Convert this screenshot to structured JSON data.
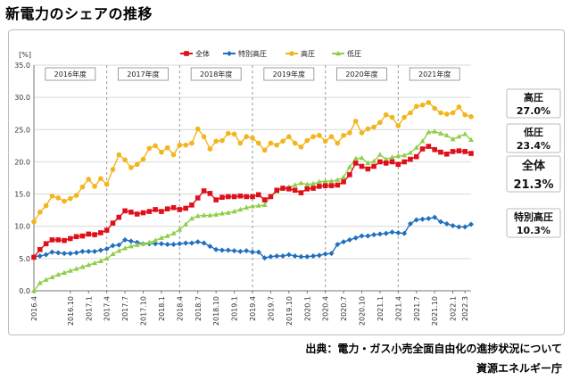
{
  "page": {
    "title": "新電力のシェアの推移"
  },
  "source": {
    "line1": "出典：電力・ガス小売全面自由化の進捗状況について",
    "line2": "資源エネルギー庁"
  },
  "colors": {
    "total": "#e0101a",
    "special_high": "#1f6fbf",
    "high": "#f2b51c",
    "low": "#8fce4a"
  },
  "chart_data": {
    "type": "line",
    "title": "",
    "ylabel": "[%]",
    "xlabel": "",
    "ylim": [
      0,
      35
    ],
    "yticks": [
      "0.0",
      "5.0",
      "10.0",
      "15.0",
      "20.0",
      "25.0",
      "30.0",
      "35.0"
    ],
    "grid": true,
    "legend_position": "top",
    "x_tick_labels": [
      "2016.4",
      "2016.10",
      "2017.1",
      "2017.4",
      "2017.7",
      "2017.10",
      "2018.1",
      "2018.4",
      "2018.7",
      "2018.10",
      "2019.1",
      "2019.4",
      "2019.7",
      "2019.10",
      "2020.1",
      "2020.4",
      "2020.7",
      "2020.10",
      "2021.1",
      "2021.4",
      "2021.7",
      "2021.10",
      "2022.1",
      "2022.3"
    ],
    "years": [
      "2016年度",
      "2017年度",
      "2018年度",
      "2019年度",
      "2020年度",
      "2021年度"
    ],
    "series": [
      {
        "name": "全体",
        "color": "#e0101a",
        "marker": "square",
        "end_label": "全体",
        "end_value": "21.3%",
        "values": [
          5.2,
          6.4,
          7.3,
          7.9,
          7.9,
          7.8,
          8.1,
          8.4,
          8.5,
          8.8,
          8.7,
          9.0,
          9.4,
          10.5,
          11.4,
          12.4,
          12.2,
          11.9,
          12.1,
          12.3,
          12.6,
          12.3,
          12.7,
          12.9,
          12.6,
          12.8,
          13.3,
          14.4,
          15.5,
          15.1,
          14.1,
          14.5,
          14.6,
          14.6,
          14.7,
          14.6,
          14.6,
          14.9,
          14.1,
          14.6,
          15.6,
          15.9,
          15.8,
          15.6,
          15.2,
          15.8,
          15.9,
          16.2,
          16.3,
          16.3,
          16.4,
          16.9,
          18.0,
          19.8,
          19.3,
          18.9,
          19.3,
          20.0,
          19.8,
          20.0,
          19.6,
          20.0,
          20.4,
          20.8,
          22.0,
          22.4,
          21.9,
          21.5,
          21.2,
          21.6,
          21.7,
          21.6,
          21.3
        ]
      },
      {
        "name": "特別高圧",
        "color": "#1f6fbf",
        "marker": "diamond",
        "end_label": "特別高圧",
        "end_value": "10.3%",
        "values": [
          5.3,
          5.4,
          5.6,
          6.0,
          5.9,
          5.8,
          5.8,
          5.9,
          6.1,
          6.1,
          6.1,
          6.3,
          6.5,
          7.0,
          7.1,
          7.9,
          7.7,
          7.5,
          7.3,
          7.3,
          7.3,
          7.3,
          7.2,
          7.2,
          7.3,
          7.4,
          7.4,
          7.6,
          7.4,
          6.9,
          6.4,
          6.3,
          6.3,
          6.2,
          6.1,
          6.2,
          6.0,
          6.0,
          5.1,
          5.3,
          5.4,
          5.4,
          5.6,
          5.4,
          5.3,
          5.3,
          5.4,
          5.5,
          5.7,
          5.8,
          7.2,
          7.6,
          7.9,
          8.2,
          8.5,
          8.5,
          8.7,
          8.8,
          8.9,
          9.1,
          9.0,
          8.9,
          10.4,
          11.0,
          11.1,
          11.2,
          11.4,
          10.7,
          10.4,
          10.1,
          9.9,
          9.9,
          10.3
        ]
      },
      {
        "name": "高圧",
        "color": "#f2b51c",
        "marker": "circle",
        "end_label": "高圧",
        "end_value": "27.0%",
        "values": [
          10.7,
          12.2,
          13.2,
          14.7,
          14.4,
          13.9,
          14.3,
          14.8,
          16.1,
          17.3,
          16.2,
          17.4,
          16.5,
          18.8,
          21.1,
          20.3,
          19.1,
          19.6,
          20.4,
          22.1,
          22.5,
          21.5,
          22.2,
          21.1,
          22.6,
          22.6,
          22.9,
          25.1,
          23.9,
          22.0,
          23.2,
          23.3,
          24.4,
          24.3,
          22.9,
          23.9,
          23.7,
          22.9,
          21.8,
          22.9,
          22.6,
          23.2,
          23.9,
          22.9,
          22.3,
          23.3,
          23.9,
          24.1,
          23.2,
          23.9,
          22.9,
          24.1,
          24.5,
          26.3,
          24.5,
          25.1,
          25.4,
          26.1,
          27.3,
          26.9,
          25.6,
          26.9,
          27.6,
          28.6,
          28.8,
          29.2,
          28.3,
          27.6,
          27.4,
          27.6,
          28.5,
          27.3,
          27.0
        ]
      },
      {
        "name": "低圧",
        "color": "#8fce4a",
        "marker": "triangle",
        "end_label": "低圧",
        "end_value": "23.4%",
        "values": [
          0.0,
          1.2,
          1.7,
          2.1,
          2.5,
          2.8,
          3.1,
          3.4,
          3.7,
          4.0,
          4.3,
          4.6,
          5.0,
          5.7,
          6.2,
          6.6,
          6.9,
          7.1,
          7.3,
          7.5,
          7.8,
          8.2,
          8.5,
          8.9,
          9.5,
          10.3,
          11.2,
          11.6,
          11.7,
          11.7,
          11.8,
          12.0,
          12.1,
          12.3,
          12.6,
          12.9,
          13.1,
          13.2,
          13.3,
          14.7,
          15.4,
          16.0,
          16.1,
          16.4,
          16.7,
          16.5,
          16.6,
          16.9,
          17.0,
          17.0,
          17.2,
          17.6,
          19.2,
          20.5,
          20.6,
          19.8,
          20.1,
          21.1,
          20.4,
          20.7,
          20.9,
          21.0,
          21.4,
          22.2,
          23.2,
          24.6,
          24.7,
          24.4,
          24.1,
          23.5,
          23.9,
          24.3,
          23.4
        ]
      }
    ]
  }
}
